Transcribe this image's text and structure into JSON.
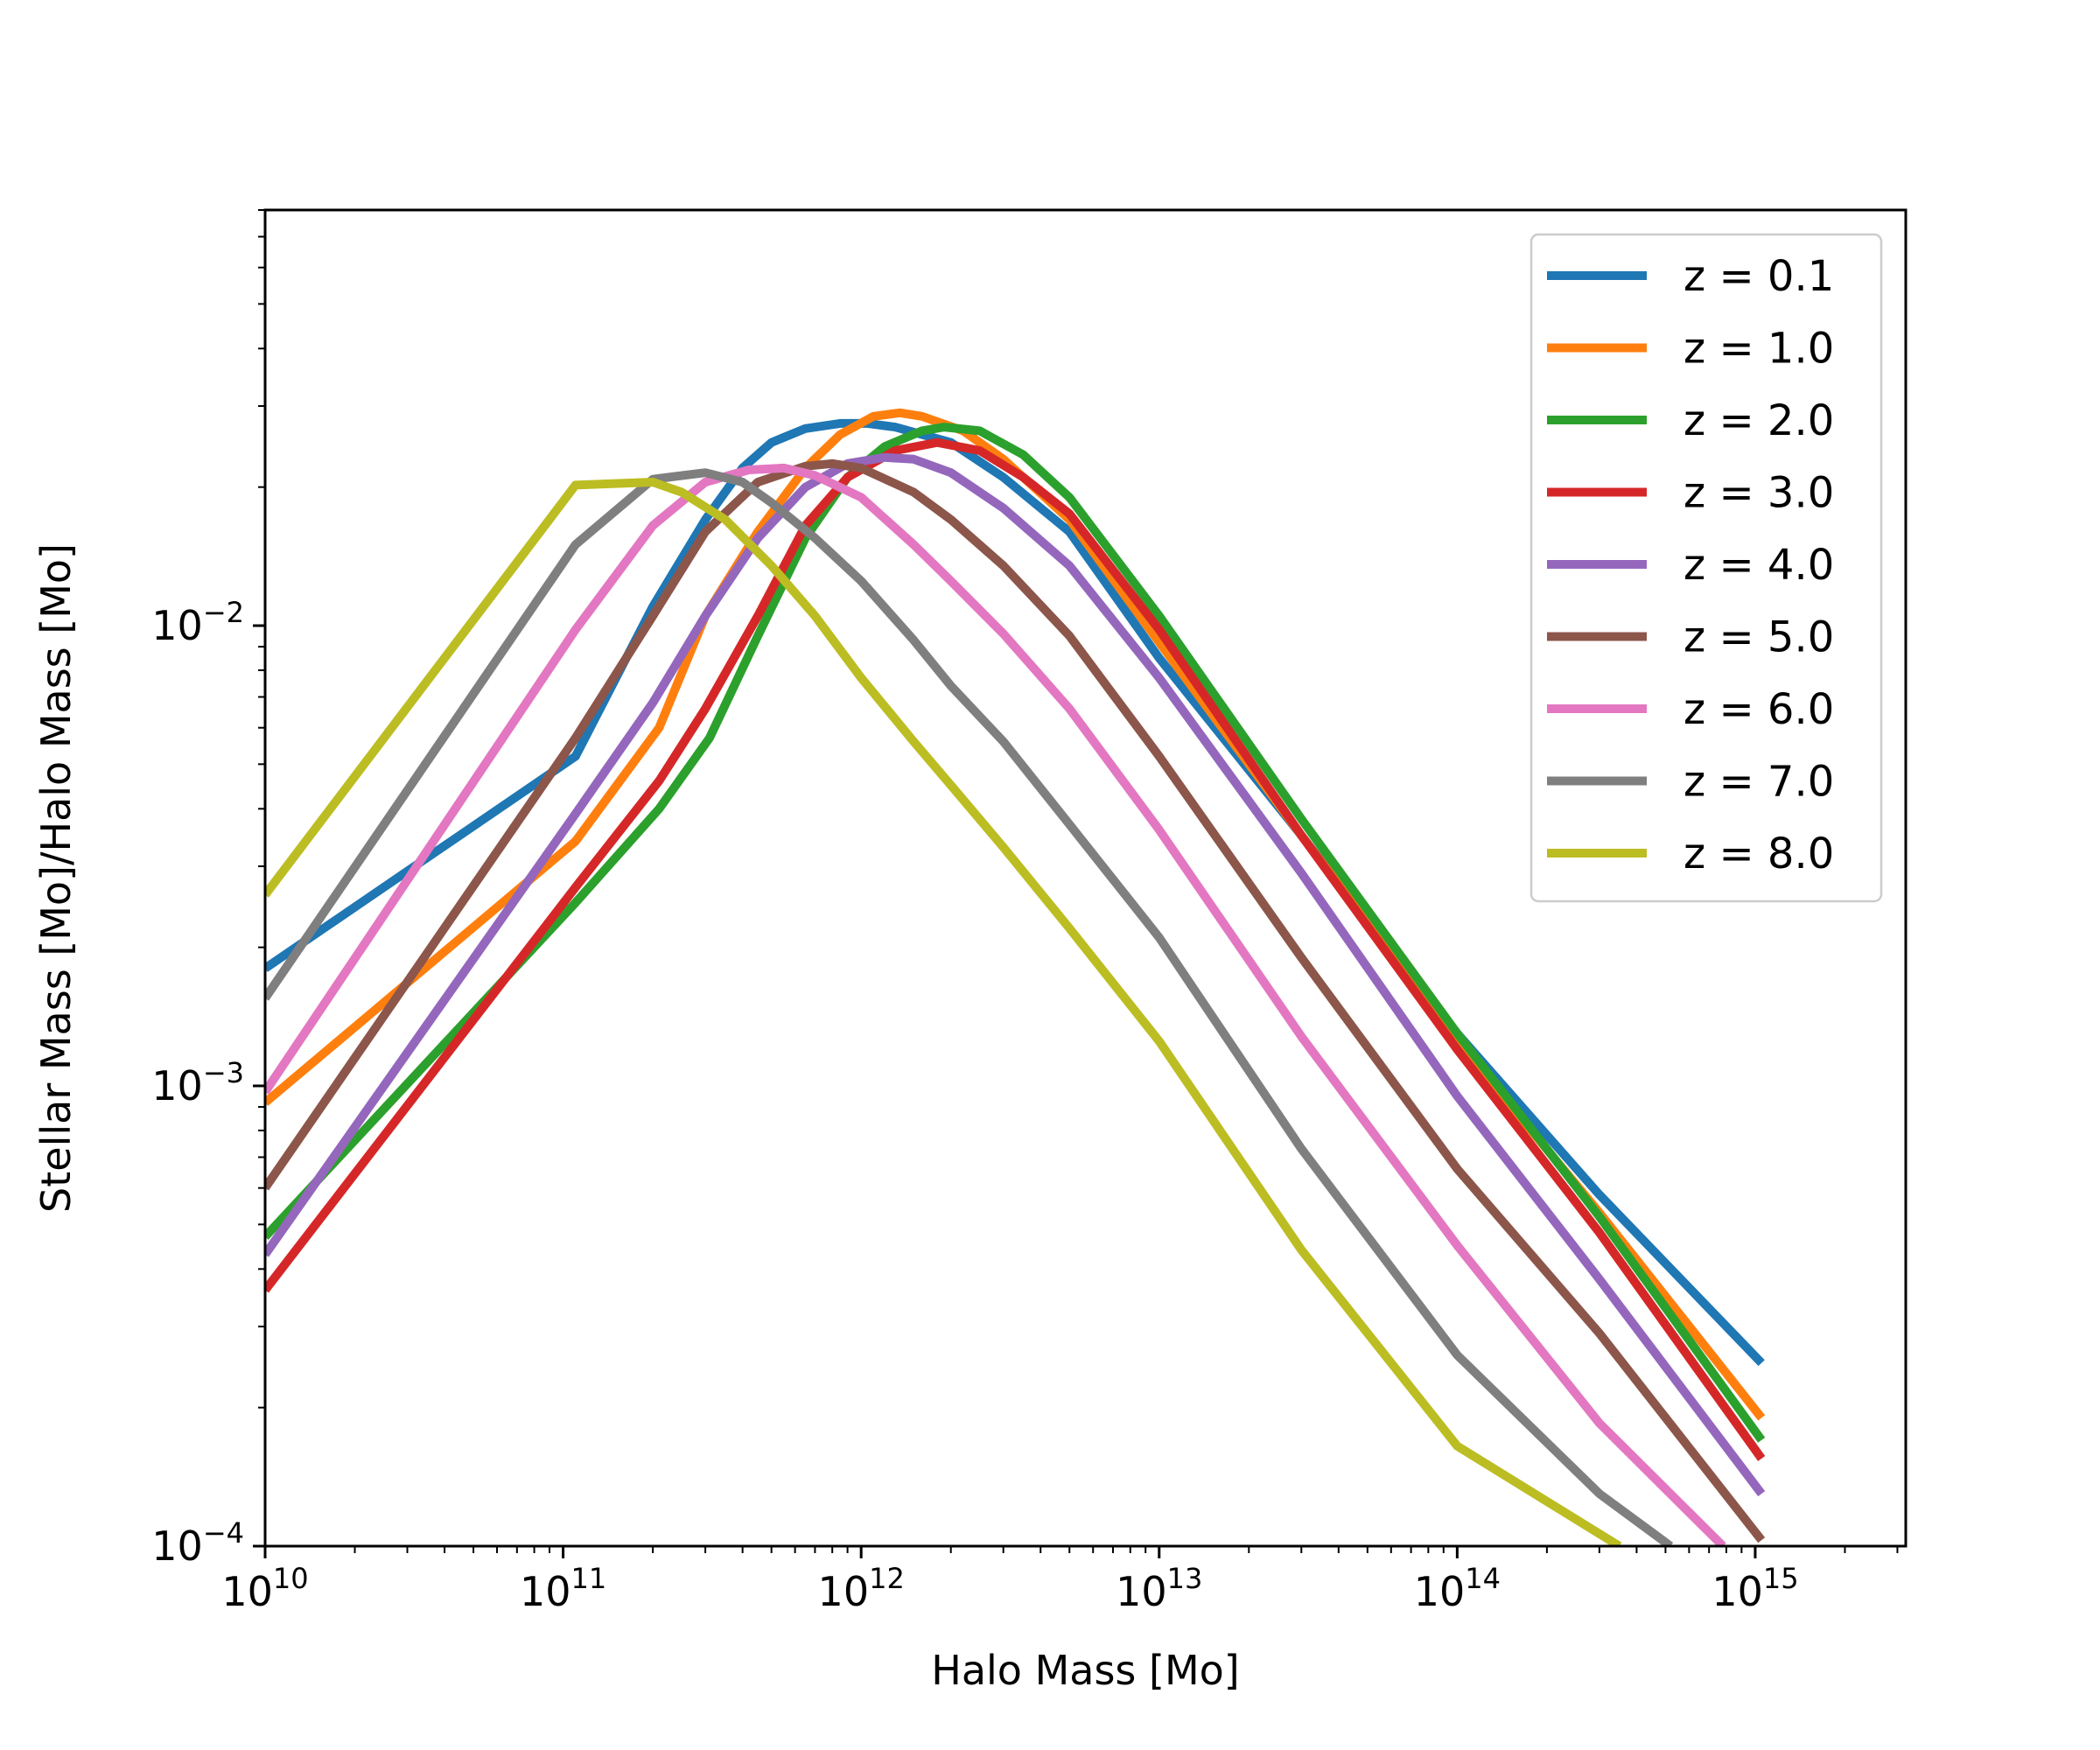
{
  "chart_data": {
    "type": "line",
    "title": "",
    "xlabel": "Halo Mass [Mo]",
    "ylabel": "Stellar Mass [Mo]/Halo Mass [Mo]",
    "xscale": "log",
    "yscale": "log",
    "xlim": [
      10000000000.0,
      3200000000000000.0
    ],
    "ylim": [
      0.0001,
      0.08
    ],
    "grid": false,
    "legend_position": "top-right",
    "x_ticks": [
      {
        "base": "10",
        "exp": "10",
        "value": 10000000000.0
      },
      {
        "base": "10",
        "exp": "11",
        "value": 100000000000.0
      },
      {
        "base": "10",
        "exp": "12",
        "value": 1000000000000.0
      },
      {
        "base": "10",
        "exp": "13",
        "value": 10000000000000.0
      },
      {
        "base": "10",
        "exp": "14",
        "value": 100000000000000.0
      },
      {
        "base": "10",
        "exp": "15",
        "value": 1000000000000000.0
      }
    ],
    "y_ticks": [
      {
        "base": "10",
        "exp": "−4",
        "value": 0.0001
      },
      {
        "base": "10",
        "exp": "−3",
        "value": 0.001
      },
      {
        "base": "10",
        "exp": "−2",
        "value": 0.01
      }
    ],
    "series": [
      {
        "name": "z = 0.1",
        "color": "#1f77b4",
        "x": [
          10000000000.0,
          110000000000.0,
          200000000000.0,
          300000000000.0,
          400000000000.0,
          500000000000.0,
          650000000000.0,
          850000000000.0,
          1050000000000.0,
          1300000000000.0,
          2000000000000.0,
          3000000000000.0,
          5000000000000.0,
          10000000000000.0,
          30000000000000.0,
          100000000000000.0,
          300000000000000.0,
          1050000000000000.0
        ],
        "y": [
          0.0018,
          0.0052,
          0.011,
          0.017,
          0.022,
          0.025,
          0.0268,
          0.0275,
          0.0275,
          0.027,
          0.025,
          0.021,
          0.016,
          0.0085,
          0.0035,
          0.0013,
          0.00058,
          0.00025
        ]
      },
      {
        "name": "z = 1.0",
        "color": "#ff7f0e",
        "x": [
          10000000000.0,
          110000000000.0,
          210000000000.0,
          300000000000.0,
          450000000000.0,
          650000000000.0,
          850000000000.0,
          1100000000000.0,
          1350000000000.0,
          1600000000000.0,
          2200000000000.0,
          3000000000000.0,
          5000000000000.0,
          10000000000000.0,
          30000000000000.0,
          100000000000000.0,
          300000000000000.0,
          1050000000000000.0
        ],
        "y": [
          0.00092,
          0.0034,
          0.006,
          0.0105,
          0.016,
          0.022,
          0.026,
          0.0285,
          0.029,
          0.0285,
          0.0265,
          0.023,
          0.017,
          0.0092,
          0.0035,
          0.00125,
          0.00053,
          0.00019
        ]
      },
      {
        "name": "z = 2.0",
        "color": "#2ca02c",
        "x": [
          10000000000.0,
          110000000000.0,
          210000000000.0,
          310000000000.0,
          450000000000.0,
          650000000000.0,
          900000000000.0,
          1200000000000.0,
          1600000000000.0,
          1900000000000.0,
          2500000000000.0,
          3500000000000.0,
          5000000000000.0,
          10000000000000.0,
          30000000000000.0,
          100000000000000.0,
          300000000000000.0,
          1050000000000000.0
        ],
        "y": [
          0.00047,
          0.0025,
          0.004,
          0.0057,
          0.0095,
          0.0155,
          0.021,
          0.0245,
          0.0265,
          0.027,
          0.0265,
          0.0235,
          0.019,
          0.0105,
          0.0038,
          0.0013,
          0.00052,
          0.00017
        ]
      },
      {
        "name": "z = 3.0",
        "color": "#d62728",
        "x": [
          10000000000.0,
          110000000000.0,
          210000000000.0,
          300000000000.0,
          450000000000.0,
          650000000000.0,
          900000000000.0,
          1300000000000.0,
          1800000000000.0,
          2500000000000.0,
          3500000000000.0,
          5000000000000.0,
          10000000000000.0,
          30000000000000.0,
          100000000000000.0,
          300000000000000.0,
          1050000000000000.0
        ],
        "y": [
          0.00036,
          0.0027,
          0.0046,
          0.0066,
          0.0105,
          0.0165,
          0.021,
          0.024,
          0.025,
          0.024,
          0.021,
          0.0175,
          0.0098,
          0.0035,
          0.0012,
          0.00048,
          0.000155
        ]
      },
      {
        "name": "z = 4.0",
        "color": "#9467bd",
        "x": [
          10000000000.0,
          110000000000.0,
          200000000000.0,
          300000000000.0,
          450000000000.0,
          650000000000.0,
          900000000000.0,
          1200000000000.0,
          1500000000000.0,
          2000000000000.0,
          3000000000000.0,
          5000000000000.0,
          10000000000000.0,
          30000000000000.0,
          100000000000000.0,
          300000000000000.0,
          1050000000000000.0
        ],
        "y": [
          0.00043,
          0.0039,
          0.0068,
          0.0105,
          0.0155,
          0.02,
          0.0225,
          0.0232,
          0.023,
          0.0215,
          0.018,
          0.0135,
          0.0077,
          0.0029,
          0.00095,
          0.00038,
          0.00013
        ]
      },
      {
        "name": "z = 5.0",
        "color": "#8c564b",
        "x": [
          10000000000.0,
          110000000000.0,
          200000000000.0,
          300000000000.0,
          450000000000.0,
          650000000000.0,
          800000000000.0,
          1000000000000.0,
          1500000000000.0,
          2000000000000.0,
          3000000000000.0,
          5000000000000.0,
          10000000000000.0,
          30000000000000.0,
          100000000000000.0,
          300000000000000.0,
          1050000000000000.0
        ],
        "y": [
          0.0006,
          0.0057,
          0.0105,
          0.016,
          0.0205,
          0.0222,
          0.0225,
          0.022,
          0.0195,
          0.017,
          0.0135,
          0.0095,
          0.0052,
          0.0019,
          0.00066,
          0.00029,
          0.000103
        ]
      },
      {
        "name": "z = 6.0",
        "color": "#e377c2",
        "x": [
          10000000000.0,
          110000000000.0,
          200000000000.0,
          300000000000.0,
          420000000000.0,
          550000000000.0,
          700000000000.0,
          1000000000000.0,
          1500000000000.0,
          2000000000000.0,
          3000000000000.0,
          5000000000000.0,
          10000000000000.0,
          30000000000000.0,
          100000000000000.0,
          300000000000000.0,
          780000000000000.0
        ],
        "y": [
          0.00097,
          0.0098,
          0.0165,
          0.0205,
          0.0218,
          0.022,
          0.0212,
          0.019,
          0.015,
          0.0125,
          0.0096,
          0.0066,
          0.0036,
          0.00128,
          0.00045,
          0.000185,
          0.0001
        ]
      },
      {
        "name": "z = 7.0",
        "color": "#7f7f7f",
        "x": [
          10000000000.0,
          110000000000.0,
          200000000000.0,
          300000000000.0,
          400000000000.0,
          500000000000.0,
          700000000000.0,
          1000000000000.0,
          1500000000000.0,
          2000000000000.0,
          3000000000000.0,
          5000000000000.0,
          10000000000000.0,
          30000000000000.0,
          100000000000000.0,
          300000000000000.0,
          520000000000000.0
        ],
        "y": [
          0.00155,
          0.015,
          0.0208,
          0.0215,
          0.0205,
          0.0185,
          0.0155,
          0.0125,
          0.0093,
          0.0074,
          0.0056,
          0.0037,
          0.0021,
          0.00073,
          0.00026,
          0.00013,
          0.0001
        ]
      },
      {
        "name": "z = 8.0",
        "color": "#bcbd22",
        "x": [
          10000000000.0,
          110000000000.0,
          200000000000.0,
          250000000000.0,
          350000000000.0,
          500000000000.0,
          700000000000.0,
          1000000000000.0,
          1500000000000.0,
          2000000000000.0,
          3000000000000.0,
          5000000000000.0,
          10000000000000.0,
          30000000000000.0,
          100000000000000.0,
          350000000000000.0
        ],
        "y": [
          0.0026,
          0.0202,
          0.0205,
          0.0195,
          0.017,
          0.0135,
          0.0105,
          0.0077,
          0.0056,
          0.0045,
          0.0033,
          0.0022,
          0.00125,
          0.00044,
          0.000165,
          0.0001
        ]
      }
    ]
  }
}
